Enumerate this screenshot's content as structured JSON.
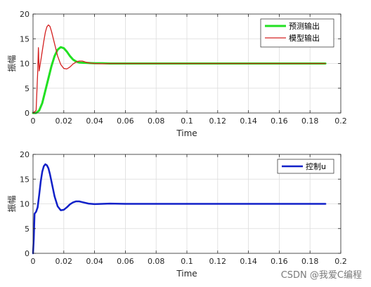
{
  "watermark": "CSDN @我爱C编程",
  "chart_data": [
    {
      "type": "line",
      "xlabel": "Time",
      "ylabel": "振幅",
      "xlim": [
        0,
        0.2
      ],
      "ylim": [
        0,
        20
      ],
      "xticks": [
        0,
        0.02,
        0.04,
        0.06,
        0.08,
        0.1,
        0.12,
        0.14,
        0.16,
        0.18,
        0.2
      ],
      "xtick_labels": [
        "0",
        "0.02",
        "0.04",
        "0.06",
        "0.08",
        "0.1",
        "0.12",
        "0.14",
        "0.16",
        "0.18",
        "0.2"
      ],
      "yticks": [
        0,
        5,
        10,
        15,
        20
      ],
      "ytick_labels": [
        "0",
        "5",
        "10",
        "15",
        "20"
      ],
      "grid": true,
      "legend_position": "top-right",
      "series": [
        {
          "name": "预测输出",
          "color": "#22e022",
          "width": 3,
          "x": [
            0,
            0.002,
            0.004,
            0.006,
            0.008,
            0.01,
            0.012,
            0.014,
            0.016,
            0.018,
            0.02,
            0.022,
            0.024,
            0.026,
            0.028,
            0.03,
            0.033,
            0.036,
            0.04,
            0.045,
            0.05,
            0.06,
            0.08,
            0.1,
            0.12,
            0.14,
            0.16,
            0.18,
            0.19
          ],
          "y": [
            0,
            0,
            0.5,
            2,
            4.5,
            7,
            9.5,
            11.5,
            12.8,
            13.3,
            13.1,
            12.4,
            11.5,
            10.8,
            10.4,
            10.2,
            10.15,
            10.1,
            10.05,
            10.05,
            10.0,
            10.0,
            10.0,
            10.0,
            10.0,
            10.0,
            10.0,
            10.0,
            10.0
          ]
        },
        {
          "name": "模型输出",
          "color": "#d42020",
          "width": 1.3,
          "x": [
            0,
            0.002,
            0.003,
            0.0035,
            0.004,
            0.005,
            0.006,
            0.007,
            0.008,
            0.009,
            0.01,
            0.011,
            0.012,
            0.014,
            0.016,
            0.018,
            0.02,
            0.022,
            0.024,
            0.026,
            0.028,
            0.03,
            0.032,
            0.034,
            0.036,
            0.038,
            0.04,
            0.045,
            0.05,
            0.06,
            0.08,
            0.1,
            0.12,
            0.14,
            0.16,
            0.18,
            0.19
          ],
          "y": [
            0,
            0.5,
            8,
            13.2,
            8.5,
            10.5,
            12.5,
            14.5,
            16.3,
            17.4,
            17.8,
            17.5,
            16.5,
            14.0,
            11.5,
            9.8,
            9.0,
            8.9,
            9.3,
            9.9,
            10.3,
            10.5,
            10.5,
            10.3,
            10.15,
            10.05,
            10.0,
            9.95,
            10.0,
            10.0,
            10.0,
            10.0,
            10.0,
            10.0,
            10.0,
            10.0,
            10.0
          ]
        }
      ]
    },
    {
      "type": "line",
      "xlabel": "Time",
      "ylabel": "振幅",
      "xlim": [
        0,
        0.2
      ],
      "ylim": [
        0,
        20
      ],
      "xticks": [
        0,
        0.02,
        0.04,
        0.06,
        0.08,
        0.1,
        0.12,
        0.14,
        0.16,
        0.18,
        0.2
      ],
      "xtick_labels": [
        "0",
        "0.02",
        "0.04",
        "0.06",
        "0.08",
        "0.1",
        "0.12",
        "0.14",
        "0.16",
        "0.18",
        "0.2"
      ],
      "yticks": [
        0,
        5,
        10,
        15,
        20
      ],
      "ytick_labels": [
        "0",
        "5",
        "10",
        "15",
        "20"
      ],
      "grid": true,
      "legend_position": "top-right",
      "series": [
        {
          "name": "控制u",
          "color": "#1020c8",
          "width": 2.5,
          "x": [
            0,
            0.0005,
            0.001,
            0.002,
            0.003,
            0.004,
            0.005,
            0.006,
            0.007,
            0.008,
            0.009,
            0.01,
            0.011,
            0.012,
            0.014,
            0.016,
            0.018,
            0.02,
            0.022,
            0.024,
            0.026,
            0.028,
            0.03,
            0.032,
            0.034,
            0.036,
            0.04,
            0.045,
            0.05,
            0.06,
            0.08,
            0.1,
            0.12,
            0.14,
            0.16,
            0.18,
            0.19
          ],
          "y": [
            0,
            3,
            8,
            8.4,
            9.3,
            11.8,
            14.5,
            16.5,
            17.6,
            18.0,
            17.8,
            17.2,
            16.0,
            14.5,
            11.5,
            9.5,
            8.7,
            8.8,
            9.3,
            9.9,
            10.3,
            10.5,
            10.5,
            10.35,
            10.2,
            10.05,
            9.95,
            10.0,
            10.05,
            10.0,
            10.0,
            10.0,
            10.0,
            10.0,
            10.0,
            10.0,
            10.0
          ]
        }
      ]
    }
  ]
}
